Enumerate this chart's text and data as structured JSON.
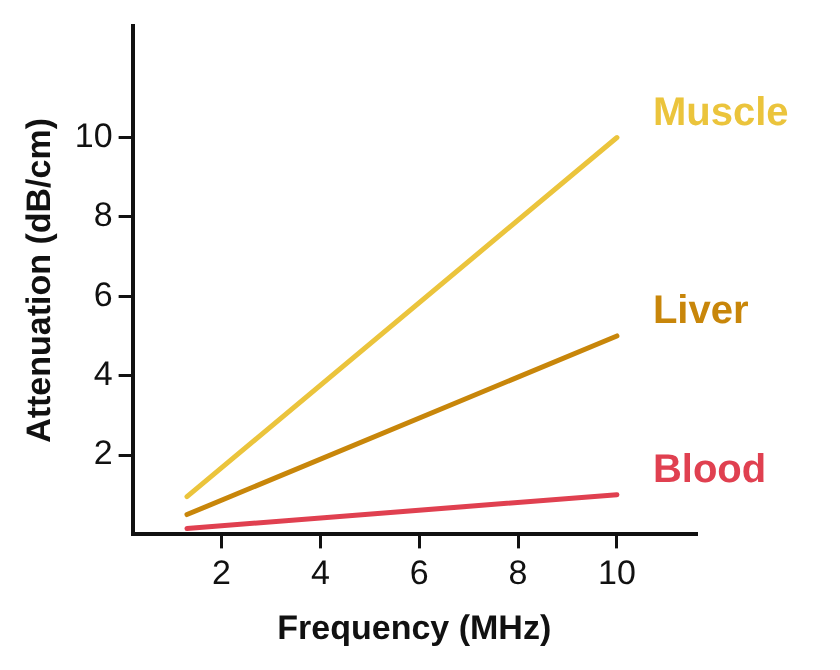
{
  "chart_data": {
    "type": "line",
    "xlabel": "Frequency (MHz)",
    "ylabel": "Attenuation (dB/cm)",
    "xlim": [
      0.2,
      11.6
    ],
    "ylim": [
      0,
      12.8
    ],
    "xticks": [
      2,
      4,
      6,
      8,
      10
    ],
    "yticks": [
      2,
      4,
      6,
      8,
      10
    ],
    "grid": false,
    "legend": false,
    "marker": "none",
    "x": [
      1.3,
      10
    ],
    "series": [
      {
        "name": "Muscle",
        "color": "#ebc43c",
        "values": [
          0.95,
          10
        ]
      },
      {
        "name": "Liver",
        "color": "#c8860a",
        "values": [
          0.5,
          5
        ]
      },
      {
        "name": "Blood",
        "color": "#e04050",
        "values": [
          0.15,
          1
        ]
      }
    ]
  }
}
